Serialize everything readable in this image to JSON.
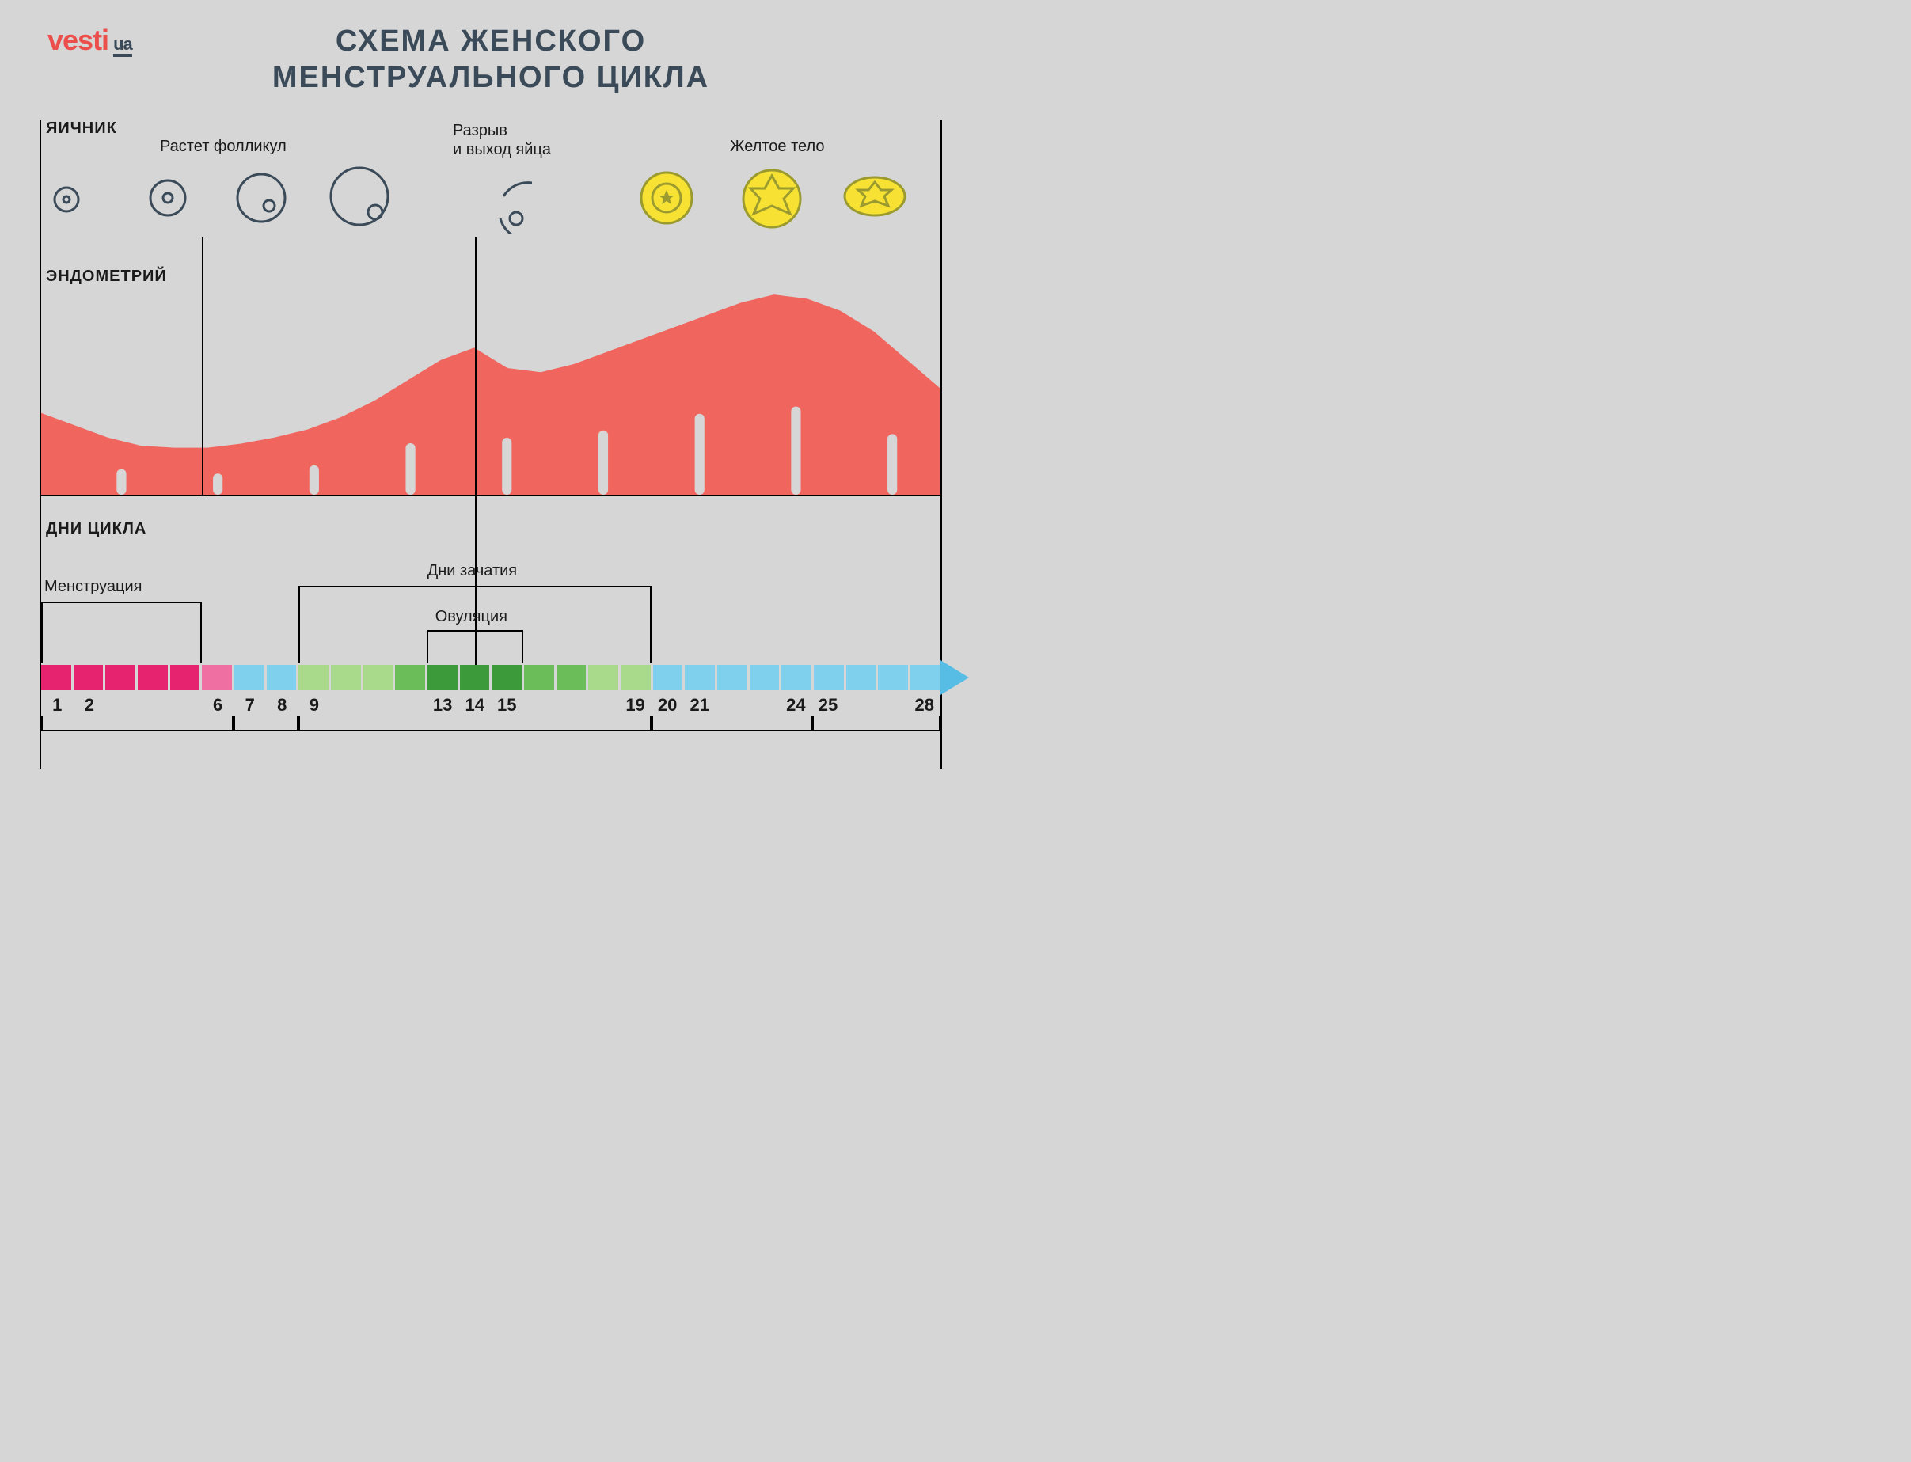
{
  "logo": {
    "brand": "vesti",
    "suffix": "ua",
    "brand_color": "#ec4f4b",
    "suffix_color": "#3a4a58"
  },
  "title_line1": "СХЕМА ЖЕНСКОГО",
  "title_line2": "МЕНСТРУАЛЬНОГО ЦИКЛА",
  "labels": {
    "ovary": "ЯИЧНИК",
    "follicle_grow": "Растет фолликул",
    "rupture1": "Разрыв",
    "rupture2": "и выход яйца",
    "corpus": "Желтое тело",
    "endometrium": "ЭНДОМЕТРИЙ",
    "cycle_days": "ДНИ  ЦИКЛА",
    "menstruation": "Менструация",
    "conception": "Дни зачатия",
    "ovulation": "Овуляция"
  },
  "colors": {
    "background": "#d6d6d6",
    "text_dark": "#3a4a58",
    "endo_fill": "#f0665f",
    "follicle_stroke": "#3a4a58",
    "corpus_yellow": "#f7e233",
    "corpus_stroke": "#9a9a2f",
    "day_magenta": "#e6236e",
    "day_pink": "#ef6fa3",
    "day_blue": "#7fd0ec",
    "day_lgreen": "#a9d98a",
    "day_green": "#6bbd5a",
    "day_dgreen": "#3c9a3a",
    "arrow_blue": "#58bde5"
  },
  "endometrium": {
    "heights": [
      0.4,
      0.34,
      0.28,
      0.24,
      0.23,
      0.23,
      0.25,
      0.28,
      0.32,
      0.38,
      0.46,
      0.56,
      0.66,
      0.72,
      0.62,
      0.6,
      0.64,
      0.7,
      0.76,
      0.82,
      0.88,
      0.94,
      0.98,
      0.96,
      0.9,
      0.8,
      0.66,
      0.52
    ],
    "tick_days": [
      3,
      6,
      9,
      12,
      15,
      18,
      21,
      24,
      27
    ]
  },
  "days": {
    "total": 28,
    "colors_by_day": [
      "m",
      "m",
      "m",
      "m",
      "m",
      "p",
      "b",
      "b",
      "lg",
      "lg",
      "lg",
      "g",
      "dg",
      "dg",
      "dg",
      "g",
      "g",
      "lg",
      "lg",
      "b",
      "b",
      "b",
      "b",
      "b",
      "b",
      "b",
      "b",
      "b"
    ],
    "shown_numbers": [
      1,
      2,
      6,
      7,
      8,
      9,
      13,
      14,
      15,
      19,
      20,
      21,
      24,
      25,
      28
    ],
    "menstruation_range": [
      1,
      5
    ],
    "conception_range": [
      9,
      19
    ],
    "ovulation_range": [
      13,
      15
    ],
    "under_brackets": [
      [
        1,
        6
      ],
      [
        7,
        8
      ],
      [
        9,
        19
      ],
      [
        20,
        24
      ],
      [
        25,
        28
      ]
    ]
  },
  "vlines": {
    "day6_top_to_endo": 6,
    "day14_full": 14
  },
  "fontsize": {
    "title": 38,
    "section": 20,
    "phase": 20,
    "daynum": 22
  }
}
